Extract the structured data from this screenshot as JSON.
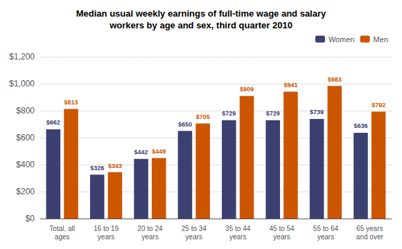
{
  "chart_data": {
    "type": "bar",
    "title": "Median usual weekly earnings of full-time wage and salary\nworkers by age and sex, third quarter 2010",
    "categories": [
      "Total, all\nages",
      "16 to 19\nyears",
      "20 to 24\nyears",
      "25 to 34\nyears",
      "35 to 44\nyears",
      "45 to 54\nyears",
      "55 to 64\nyears",
      "65 years\nand over"
    ],
    "series": [
      {
        "name": "Women",
        "color": "#3C4070",
        "values": [
          662,
          326,
          442,
          650,
          729,
          729,
          739,
          636
        ],
        "value_labels": [
          "$662",
          "$326",
          "$442",
          "$650",
          "$729",
          "$729",
          "$739",
          "$636"
        ]
      },
      {
        "name": "Men",
        "color": "#CC5500",
        "values": [
          813,
          343,
          449,
          705,
          909,
          941,
          983,
          792
        ],
        "value_labels": [
          "$813",
          "$343",
          "$449",
          "$705",
          "$909",
          "$941",
          "$983",
          "$792"
        ]
      }
    ],
    "ylim": [
      0,
      1200
    ],
    "yticks": [
      {
        "value": 0,
        "label": "$0"
      },
      {
        "value": 200,
        "label": "$200"
      },
      {
        "value": 400,
        "label": "$400"
      },
      {
        "value": 600,
        "label": "$600"
      },
      {
        "value": 800,
        "label": "$800"
      },
      {
        "value": 1000,
        "label": "$1,000"
      },
      {
        "value": 1200,
        "label": "$1,200"
      }
    ],
    "grid": true,
    "legend": "upper right",
    "data_labels": true
  }
}
